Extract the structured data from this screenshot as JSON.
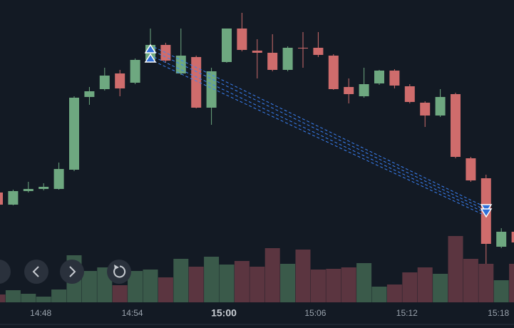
{
  "chart_data": {
    "type": "candlestick",
    "x": [
      null,
      null,
      null,
      "14:48",
      null,
      null,
      null,
      null,
      null,
      "14:54",
      null,
      null,
      null,
      null,
      null,
      "15:00",
      null,
      null,
      null,
      null,
      null,
      "15:06",
      null,
      null,
      null,
      null,
      null,
      "15:12",
      null,
      null,
      null,
      null,
      null,
      "15:18",
      null
    ],
    "open": [
      190,
      173,
      192,
      195,
      195,
      222,
      324,
      335,
      357,
      344,
      376,
      397,
      357,
      380,
      309,
      373,
      420,
      389,
      386,
      362,
      393,
      393,
      382,
      338,
      325,
      343,
      361,
      339,
      316,
      298,
      328,
      238,
      210,
      114,
      135
    ],
    "high": [
      192,
      194,
      205,
      203,
      232,
      325,
      338,
      365,
      362,
      378,
      420,
      400,
      420,
      382,
      365,
      420,
      442,
      405,
      412,
      395,
      415,
      415,
      384,
      350,
      365,
      362,
      363,
      342,
      318,
      335,
      330,
      240,
      215,
      140,
      142
    ],
    "low": [
      170,
      172,
      190,
      193,
      194,
      220,
      313,
      333,
      325,
      342,
      372,
      372,
      355,
      308,
      285,
      372,
      388,
      350,
      360,
      360,
      365,
      380,
      334,
      315,
      323,
      341,
      336,
      315,
      282,
      296,
      238,
      205,
      90,
      112,
      115
    ],
    "close": [
      173,
      192,
      195,
      198,
      223,
      323,
      332,
      354,
      336,
      376,
      397,
      375,
      382,
      309,
      360,
      420,
      390,
      386,
      362,
      393,
      392,
      383,
      335,
      328,
      342,
      361,
      340,
      317,
      298,
      324,
      240,
      207,
      118,
      135,
      120
    ],
    "volume": [
      11,
      17,
      12,
      8,
      18,
      66,
      44,
      49,
      24,
      44,
      46,
      35,
      61,
      50,
      64,
      53,
      58,
      50,
      76,
      54,
      74,
      46,
      47,
      49,
      55,
      22,
      25,
      42,
      49,
      40,
      93,
      61,
      54,
      31,
      54
    ],
    "up_color": "#6ea880",
    "down_color": "#cf6c6c",
    "volume_up_color": "#3a5a4a",
    "volume_down_color": "#5b3540",
    "ylim": [
      0,
      460
    ],
    "y2lim": [
      0,
      424
    ]
  }
}
